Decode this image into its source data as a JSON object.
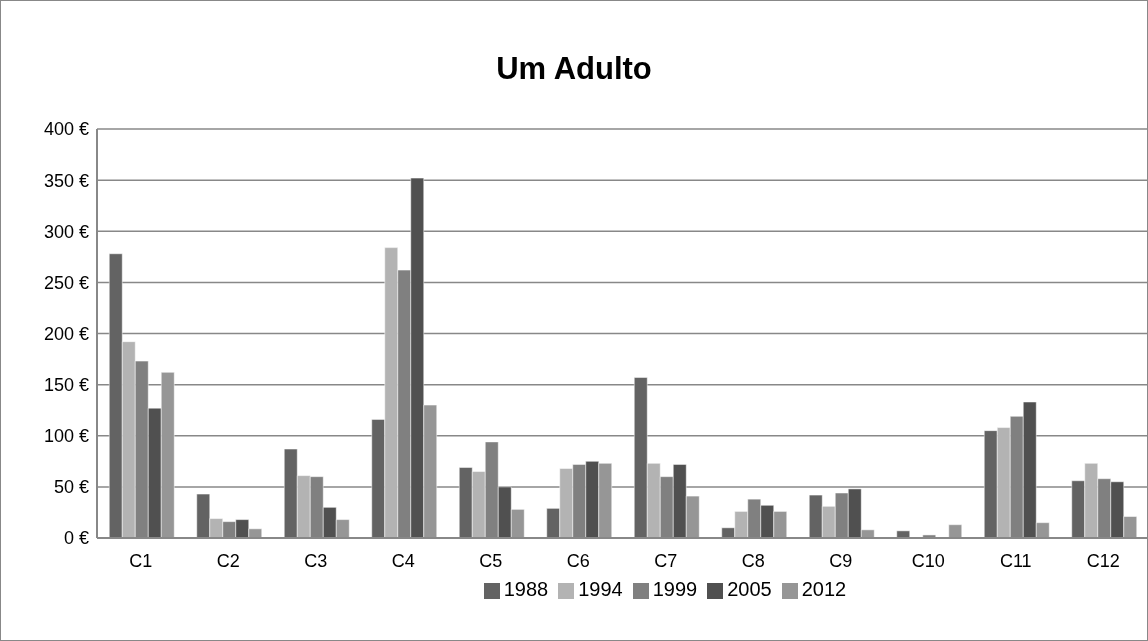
{
  "chart_data": {
    "type": "bar",
    "title": "Um Adulto",
    "categories": [
      "C1",
      "C2",
      "C3",
      "C4",
      "C5",
      "C6",
      "C7",
      "C8",
      "C9",
      "C10",
      "C11",
      "C12"
    ],
    "series": [
      {
        "name": "1988",
        "color": "#636363",
        "values": [
          278,
          43,
          87,
          116,
          69,
          29,
          157,
          10,
          42,
          7,
          105,
          56
        ]
      },
      {
        "name": "1994",
        "color": "#b3b3b3",
        "values": [
          192,
          19,
          61,
          284,
          65,
          68,
          73,
          26,
          31,
          0,
          108,
          73
        ]
      },
      {
        "name": "1999",
        "color": "#808080",
        "values": [
          173,
          16,
          60,
          262,
          94,
          72,
          60,
          38,
          44,
          3,
          119,
          58
        ]
      },
      {
        "name": "2005",
        "color": "#505050",
        "values": [
          127,
          18,
          30,
          352,
          50,
          75,
          72,
          32,
          48,
          0,
          133,
          55
        ]
      },
      {
        "name": "2012",
        "color": "#969696",
        "values": [
          162,
          9,
          18,
          130,
          28,
          73,
          41,
          26,
          8,
          13,
          15,
          21
        ]
      }
    ],
    "ylim": [
      0,
      400
    ],
    "yticks": [
      {
        "value": 0,
        "label": "0 €"
      },
      {
        "value": 50,
        "label": "50 €"
      },
      {
        "value": 100,
        "label": "100 €"
      },
      {
        "value": 150,
        "label": "150 €"
      },
      {
        "value": 200,
        "label": "200 €"
      },
      {
        "value": 250,
        "label": "250 €"
      },
      {
        "value": 300,
        "label": "300 €"
      },
      {
        "value": 350,
        "label": "350 €"
      },
      {
        "value": 400,
        "label": "400 €"
      }
    ],
    "grid": "y",
    "legend": "bottom"
  }
}
